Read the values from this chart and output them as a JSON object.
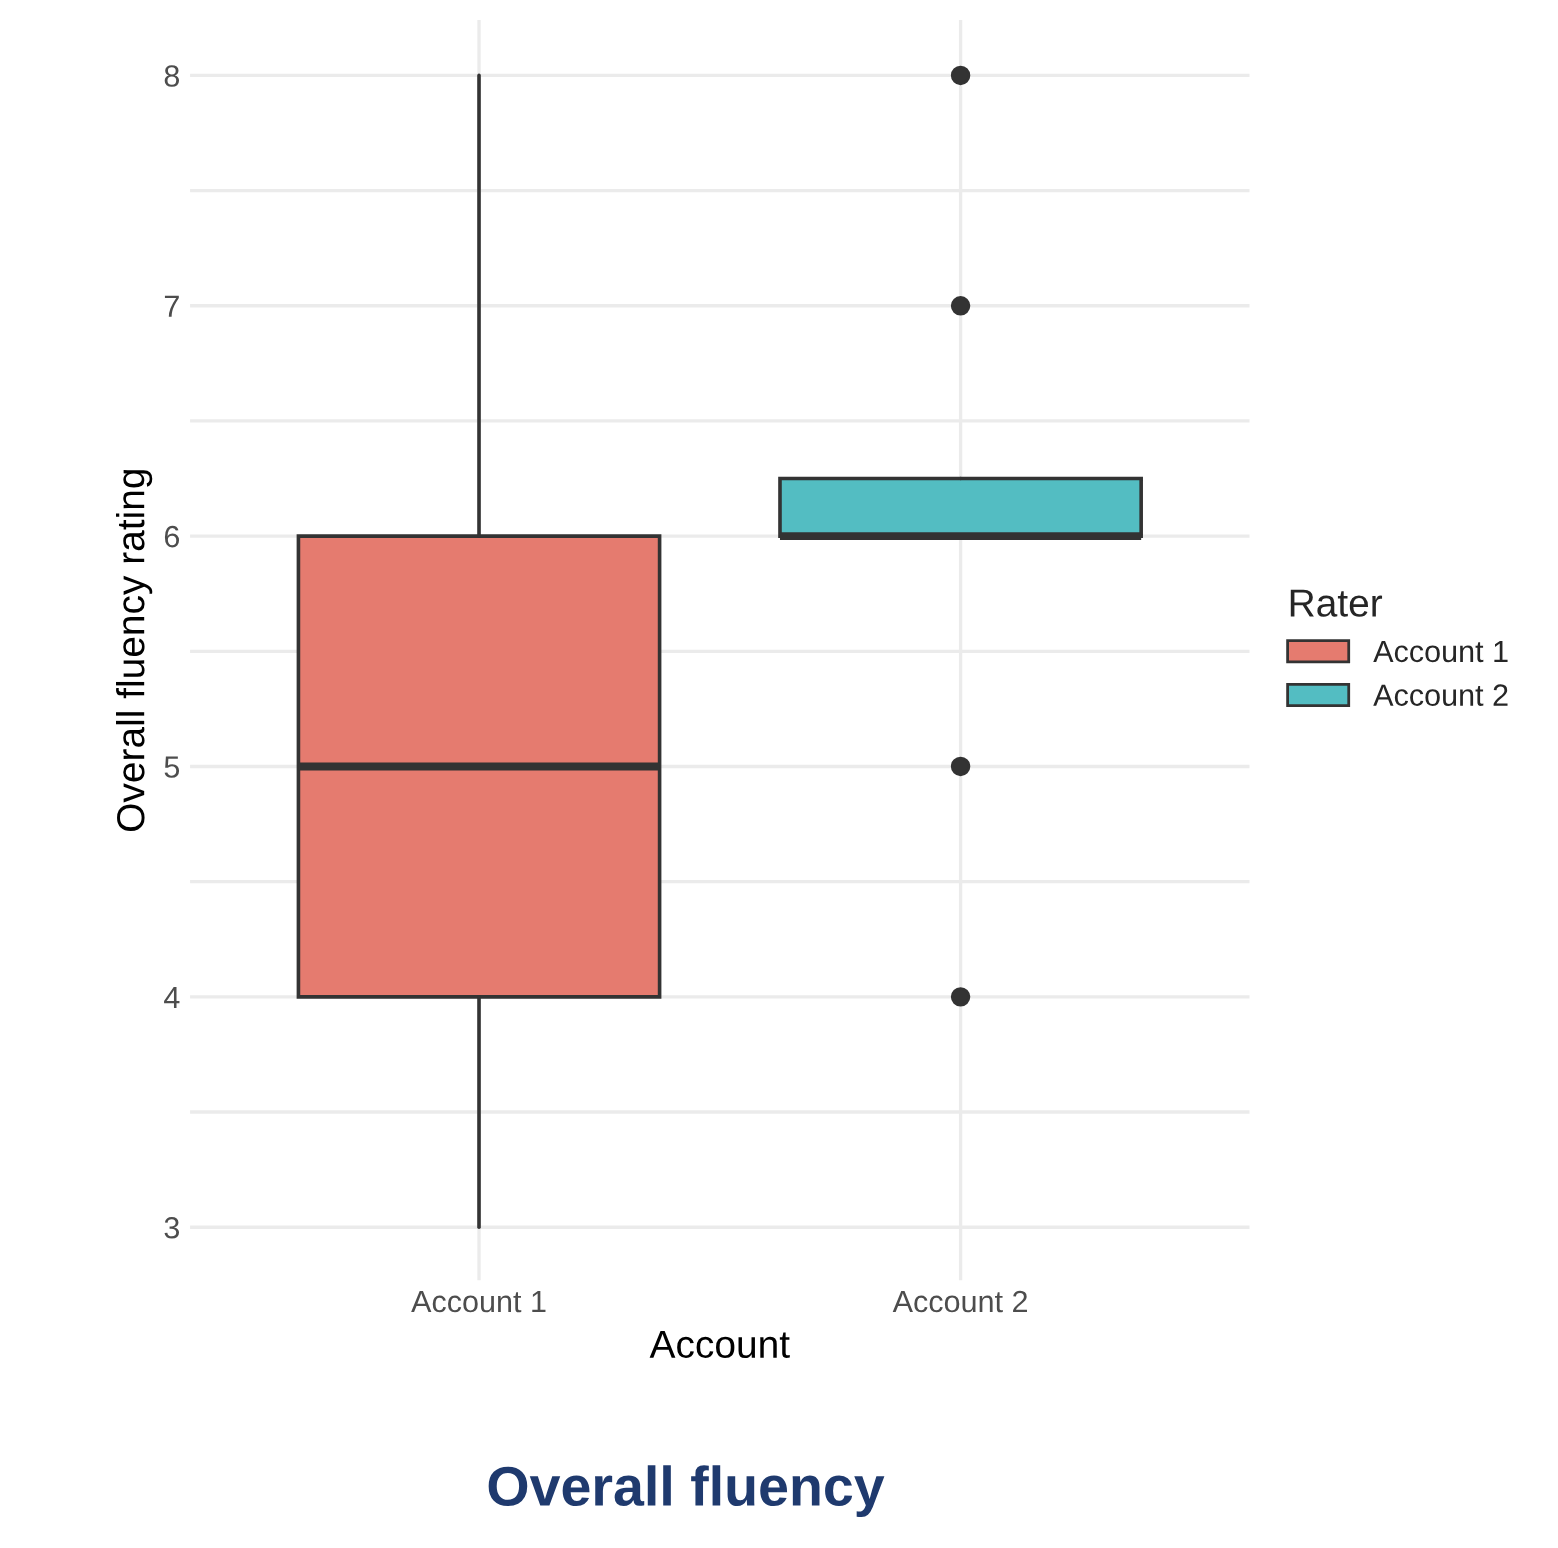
{
  "chart_data": {
    "type": "box",
    "title": "Overall fluency",
    "xlabel": "Account",
    "ylabel": "Overall fluency rating",
    "legend_title": "Rater",
    "legend": "right",
    "categories": [
      "Account 1",
      "Account 2"
    ],
    "series": [
      {
        "name": "Account 1",
        "color": "#e57b6f",
        "boxes": [
          {
            "low": 3,
            "q1": 4,
            "median": 5,
            "q3": 6,
            "high": 8
          },
          null
        ]
      },
      {
        "name": "Account 2",
        "color": "#53bdc2",
        "boxes": [
          null,
          {
            "low": 6,
            "q1": 6,
            "median": 6,
            "q3": 6.25,
            "high": 6.25,
            "outliers": [
              4,
              5,
              7,
              8
            ]
          }
        ]
      }
    ],
    "ylim": [
      2.77,
      8.24
    ],
    "yticks": [
      3,
      {
        "value": 3.5,
        "label": null
      },
      4,
      {
        "value": 4.5,
        "label": null
      },
      5,
      {
        "value": 5.5,
        "label": null
      },
      6,
      {
        "value": 6.5,
        "label": null
      },
      7,
      {
        "value": 7.5,
        "label": null
      },
      8
    ],
    "grid": true
  }
}
